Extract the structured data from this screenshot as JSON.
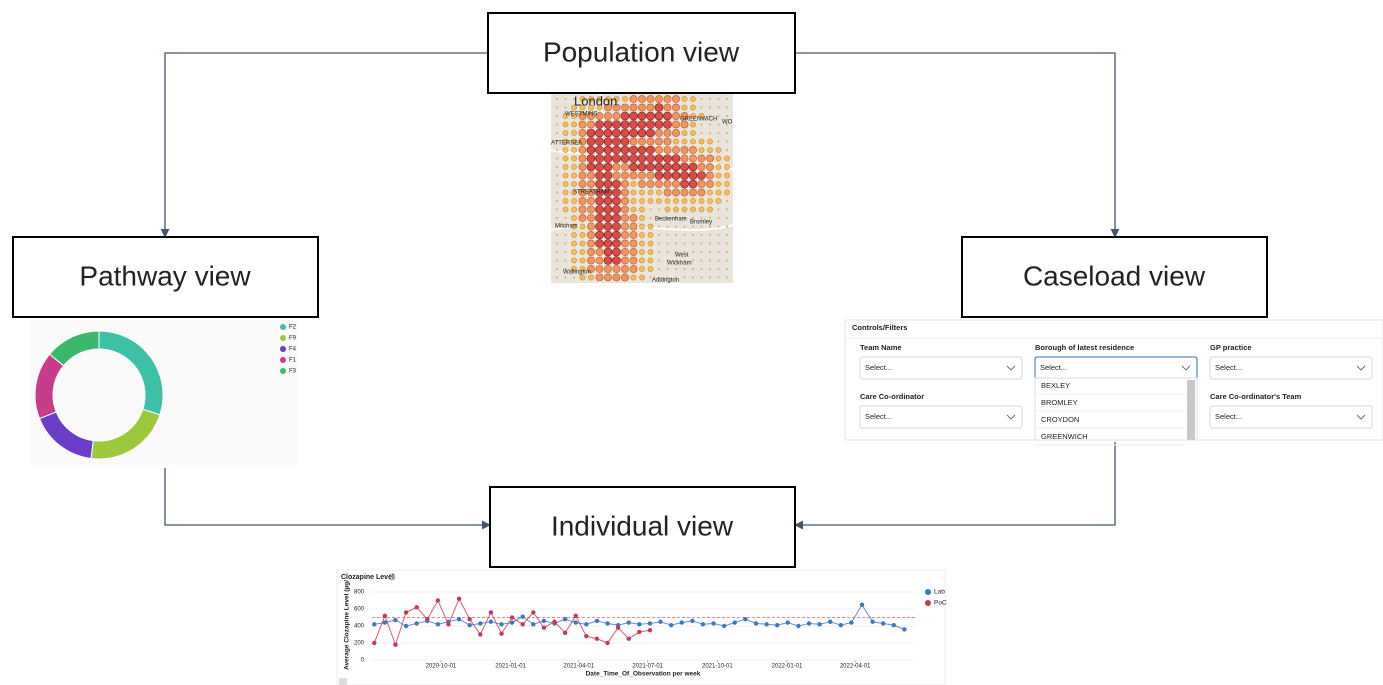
{
  "nodes": [
    {
      "label": "Population view"
    },
    {
      "label": "Pathway view"
    },
    {
      "label": "Caseload view"
    },
    {
      "label": "Individual view"
    }
  ],
  "map": {
    "labels": [
      "London",
      "WESTMINS",
      "GREENWICH",
      "ATTERSEA",
      "STREATHAM",
      "Beckenham",
      "Bromley",
      "Mitcham",
      "West",
      "Wickham",
      "Wallington",
      "Addington",
      "WO"
    ]
  },
  "pathway_chart": {
    "type": "donut",
    "categories": [
      "F2",
      "F9",
      "F4",
      "F1",
      "F3"
    ],
    "values": [
      30,
      22,
      17,
      17,
      14
    ],
    "colors": [
      "#3cc0a8",
      "#9cc83c",
      "#6a3cc8",
      "#c83c8c",
      "#3cb86c"
    ]
  },
  "caseload_filters": {
    "title": "Controls/Filters",
    "fields": [
      {
        "label": "Team Name",
        "placeholder": "Select..."
      },
      {
        "label": "Borough of latest residence",
        "placeholder": "Select..."
      },
      {
        "label": "GP practice",
        "placeholder": "Select..."
      },
      {
        "label": "Care Co-ordinator",
        "placeholder": "Select..."
      },
      {
        "label": "Care Co-ordinator's Team",
        "placeholder": "Select..."
      }
    ],
    "dropdown": [
      "BEXLEY",
      "BROMLEY",
      "CROYDON",
      "GREENWICH"
    ]
  },
  "individual_chart": {
    "type": "line",
    "title": "Clozapine Level",
    "y_label": "Average Clozapine Level (µg/",
    "x_label": "Date_Time_Of_Observation per week",
    "xlim": [
      "2020-07-02",
      "2022-06-19"
    ],
    "xticks": [
      "2020-10-01",
      "2021-01-01",
      "2021-04-01",
      "2021-07-01",
      "2021-10-01",
      "2022-01-01",
      "2022-04-01"
    ],
    "ylim": [
      0,
      800
    ],
    "yticks": [
      0,
      200,
      400,
      600,
      800
    ],
    "reference_line": 500,
    "series": [
      {
        "name": "Lab",
        "color": "#3a78c2",
        "x": [
          "2020-07-05",
          "2020-07-19",
          "2020-08-02",
          "2020-08-16",
          "2020-08-30",
          "2020-09-13",
          "2020-09-27",
          "2020-10-11",
          "2020-10-25",
          "2020-11-08",
          "2020-11-22",
          "2020-12-06",
          "2020-12-20",
          "2021-01-03",
          "2021-01-17",
          "2021-01-31",
          "2021-02-14",
          "2021-02-28",
          "2021-03-14",
          "2021-03-28",
          "2021-04-11",
          "2021-04-25",
          "2021-05-09",
          "2021-05-23",
          "2021-06-06",
          "2021-06-20",
          "2021-07-04",
          "2021-07-18",
          "2021-08-01",
          "2021-08-15",
          "2021-08-29",
          "2021-09-12",
          "2021-09-26",
          "2021-10-10",
          "2021-10-24",
          "2021-11-07",
          "2021-11-21",
          "2021-12-05",
          "2021-12-19",
          "2022-01-02",
          "2022-01-16",
          "2022-01-30",
          "2022-02-13",
          "2022-02-27",
          "2022-03-13",
          "2022-03-27",
          "2022-04-10",
          "2022-04-24",
          "2022-05-08",
          "2022-05-22",
          "2022-06-05"
        ],
        "values": [
          420,
          440,
          470,
          400,
          430,
          460,
          420,
          450,
          480,
          410,
          430,
          450,
          420,
          440,
          510,
          420,
          460,
          430,
          480,
          440,
          420,
          460,
          430,
          410,
          440,
          420,
          430,
          450,
          410,
          440,
          460,
          420,
          430,
          400,
          440,
          480,
          430,
          420,
          410,
          440,
          400,
          430,
          420,
          450,
          410,
          440,
          650,
          450,
          430,
          410,
          360
        ]
      },
      {
        "name": "PoC",
        "color": "#c8365a",
        "x": [
          "2020-07-05",
          "2020-07-19",
          "2020-08-02",
          "2020-08-16",
          "2020-08-30",
          "2020-09-13",
          "2020-09-27",
          "2020-10-11",
          "2020-10-25",
          "2020-11-08",
          "2020-11-22",
          "2020-12-06",
          "2020-12-20",
          "2021-01-03",
          "2021-01-17",
          "2021-01-31",
          "2021-02-14",
          "2021-02-28",
          "2021-03-14",
          "2021-03-28",
          "2021-04-11",
          "2021-04-25",
          "2021-05-09",
          "2021-05-23",
          "2021-06-06",
          "2021-06-20",
          "2021-07-04"
        ],
        "values": [
          200,
          520,
          180,
          560,
          620,
          480,
          700,
          420,
          720,
          480,
          300,
          560,
          310,
          500,
          420,
          560,
          380,
          450,
          320,
          520,
          280,
          250,
          200,
          380,
          250,
          330,
          350
        ]
      }
    ]
  }
}
